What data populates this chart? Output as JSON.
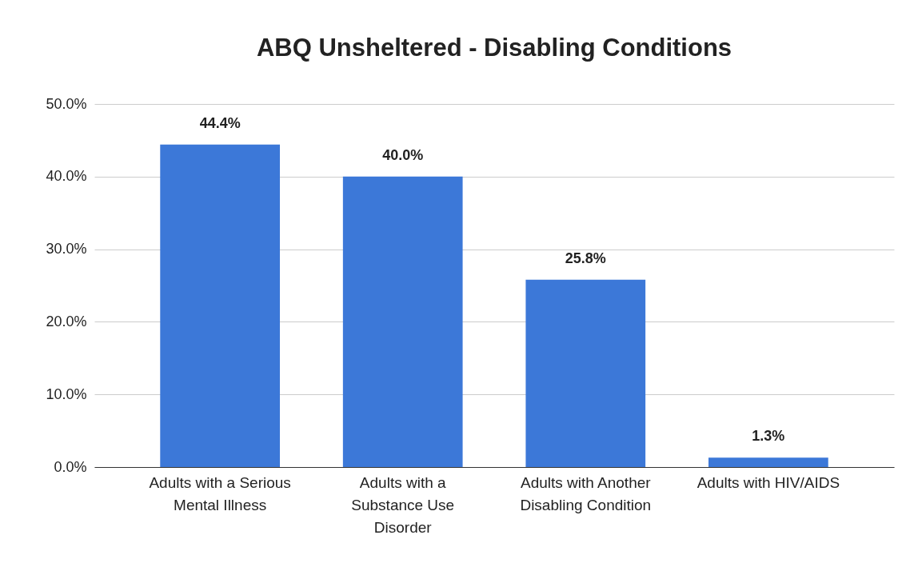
{
  "chart_data": {
    "type": "bar",
    "title": "ABQ Unsheltered - Disabling Conditions",
    "categories": [
      "Adults with a Serious Mental Illness",
      "Adults with a Substance Use Disorder",
      "Adults with Another Disabling Condition",
      "Adults with HIV/AIDS"
    ],
    "values": [
      44.4,
      40.0,
      25.8,
      1.3
    ],
    "value_labels": [
      "44.4%",
      "40.0%",
      "25.8%",
      "1.3%"
    ],
    "color": "#3c78d8",
    "ylim": [
      0,
      50
    ],
    "yticks": [
      {
        "value": 0,
        "label": "0.0%"
      },
      {
        "value": 10,
        "label": "10.0%"
      },
      {
        "value": 20,
        "label": "20.0%"
      },
      {
        "value": 30,
        "label": "30.0%"
      },
      {
        "value": 40,
        "label": "40.0%"
      },
      {
        "value": 50,
        "label": "50.0%"
      }
    ],
    "grid": "y"
  }
}
